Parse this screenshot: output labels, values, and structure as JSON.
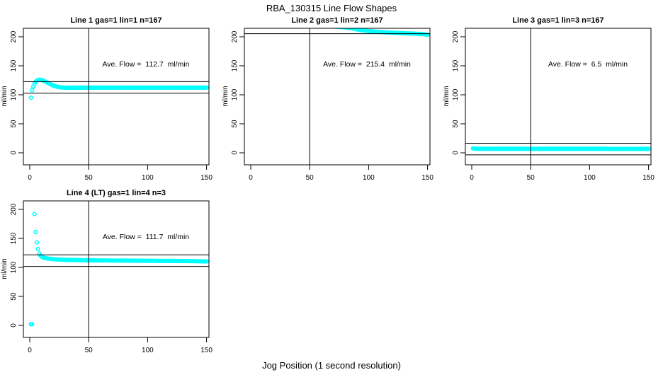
{
  "page": {
    "main_title": "RBA_130315  Line Flow Shapes",
    "x_axis_label_bottom": "Jog Position (1 second resolution)",
    "background_color": "#ffffff",
    "point_color": "#00ffff",
    "line_color": "#000000"
  },
  "chart_data": [
    {
      "type": "scatter",
      "title": "Line 1 gas=1 lin=1 n=167",
      "annotation": "Ave. Flow =  112.7  ml/min",
      "ave_flow_ml_min": 112.7,
      "ylabel": "ml/min",
      "x_ticks": [
        0,
        50,
        100,
        150
      ],
      "y_ticks": [
        0,
        50,
        100,
        150,
        200
      ],
      "xlim": [
        -6,
        153
      ],
      "ylim": [
        -21,
        215
      ],
      "grid": false,
      "vline_x": 50,
      "hlines": [
        122.7,
        102.7
      ],
      "series_segments": [
        [
          [
            1,
            95
          ]
        ],
        [
          [
            2,
            108
          ],
          [
            3,
            114
          ],
          [
            4,
            119
          ],
          [
            5,
            122
          ],
          [
            6,
            124.5
          ],
          [
            8,
            126
          ],
          [
            10,
            125.5
          ],
          [
            12,
            124
          ],
          [
            14,
            122
          ],
          [
            16,
            120
          ],
          [
            18,
            118
          ],
          [
            20,
            116
          ],
          [
            23,
            114
          ],
          [
            26,
            112.8
          ],
          [
            30,
            112.2
          ],
          [
            60,
            112.4
          ],
          [
            100,
            112.4
          ],
          [
            150,
            112.4
          ]
        ]
      ]
    },
    {
      "type": "scatter",
      "title": "Line 2 gas=1 lin=2 n=167",
      "annotation": "Ave. Flow =  215.4  ml/min",
      "ave_flow_ml_min": 215.4,
      "ylabel": "ml/min",
      "x_ticks": [
        0,
        50,
        100,
        150
      ],
      "y_ticks": [
        0,
        50,
        100,
        150,
        200
      ],
      "xlim": [
        -6,
        153
      ],
      "ylim": [
        -21,
        215
      ],
      "grid": false,
      "vline_x": 50,
      "hlines": [
        225.4,
        205.4
      ],
      "series_segments": [
        [
          [
            1,
            219
          ],
          [
            60,
            218.5
          ],
          [
            75,
            217.2
          ],
          [
            85,
            215
          ],
          [
            92,
            212
          ],
          [
            100,
            209.8
          ],
          [
            108,
            208.4
          ],
          [
            116,
            207.4
          ],
          [
            124,
            206.6
          ],
          [
            132,
            206
          ],
          [
            140,
            205.3
          ],
          [
            146,
            204.5
          ],
          [
            150,
            203.7
          ]
        ]
      ]
    },
    {
      "type": "scatter",
      "title": "Line 3 gas=1 lin=3 n=167",
      "annotation": "Ave. Flow =  6.5  ml/min",
      "ave_flow_ml_min": 6.5,
      "ylabel": "ml/min",
      "x_ticks": [
        0,
        50,
        100,
        150
      ],
      "y_ticks": [
        0,
        50,
        100,
        150,
        200
      ],
      "xlim": [
        -6,
        153
      ],
      "ylim": [
        -21,
        215
      ],
      "grid": false,
      "vline_x": 50,
      "hlines": [
        16.5,
        -3.5
      ],
      "series_segments": [
        [
          [
            1,
            7.6
          ],
          [
            4,
            7
          ],
          [
            30,
            6.8
          ],
          [
            100,
            6.8
          ],
          [
            150,
            6.7
          ]
        ]
      ]
    },
    {
      "type": "scatter",
      "title": "Line 4 (LT) gas=1 lin=4 n=3",
      "annotation": "Ave. Flow =  111.7  ml/min",
      "ave_flow_ml_min": 111.7,
      "ylabel": "ml/min",
      "x_ticks": [
        0,
        50,
        100,
        150
      ],
      "y_ticks": [
        0,
        50,
        100,
        150,
        200
      ],
      "xlim": [
        -6,
        153
      ],
      "ylim": [
        -21,
        215
      ],
      "grid": false,
      "vline_x": 50,
      "hlines": [
        121.7,
        101.7
      ],
      "series_segments": [
        [
          [
            1,
            2
          ],
          [
            2,
            2
          ]
        ],
        [
          [
            4,
            192
          ],
          [
            5,
            161
          ],
          [
            6,
            143
          ],
          [
            7,
            132
          ],
          [
            8,
            124
          ],
          [
            9,
            120.5
          ],
          [
            10,
            118.5
          ],
          [
            12,
            116.8
          ],
          [
            15,
            115.3
          ],
          [
            20,
            114.2
          ],
          [
            25,
            113.5
          ],
          [
            30,
            113
          ],
          [
            40,
            112.6
          ],
          [
            50,
            112.3
          ],
          [
            60,
            112
          ],
          [
            80,
            111.7
          ],
          [
            100,
            111.4
          ],
          [
            120,
            111.1
          ],
          [
            135,
            110.9
          ],
          [
            150,
            110.3
          ]
        ]
      ]
    }
  ]
}
